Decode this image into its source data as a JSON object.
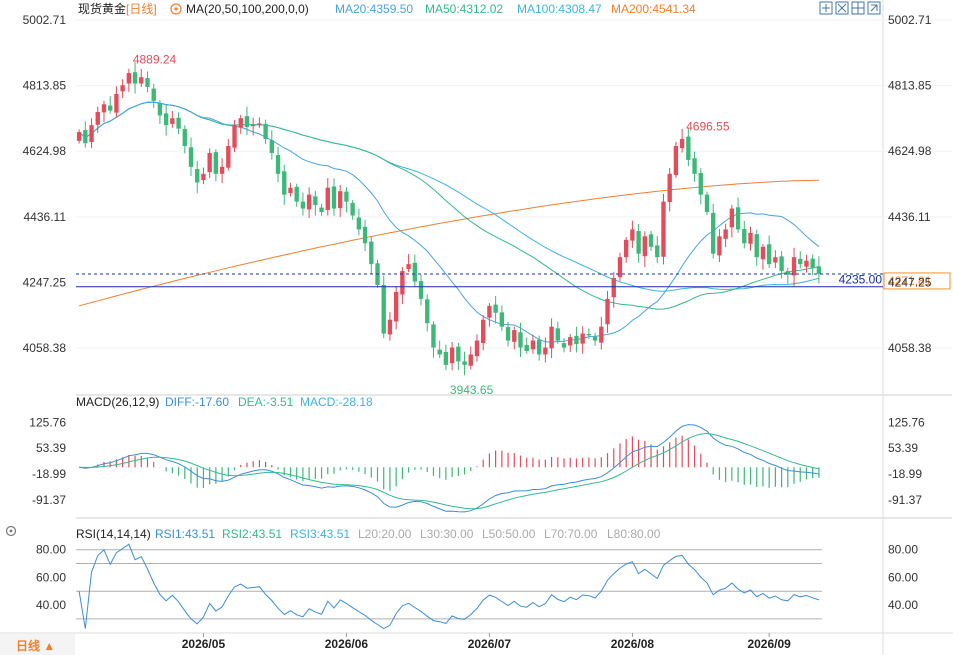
{
  "header": {
    "instrument": "现货黄金",
    "period_tag": "[日线]",
    "settings_icon": "gear-icon",
    "ma_label": "MA(20,50,100,200,0,0)",
    "ma20": "MA20:4359.50",
    "ma50": "MA50:4312.02",
    "ma100": "MA100:4308.47",
    "ma200": "MA200:4541.34",
    "toolbar_icons": [
      "crosshair-icon",
      "fullscreen-icon",
      "grid-icon",
      "expand-icon"
    ]
  },
  "macd_header": {
    "label": "MACD(26,12,9)",
    "diff": "DIFF:-17.60",
    "dea": "DEA:-3.51",
    "macd": "MACD:-28.18"
  },
  "rsi_header": {
    "label": "RSI(14,14,14)",
    "rsi1": "RSI1:43.51",
    "rsi2": "RSI2:43.51",
    "rsi3": "RSI3:43.51",
    "l20": "L20:20.00",
    "l30": "L30:30.00",
    "l50": "L50:50.00",
    "l70": "L70:70.00",
    "l80": "L80:80.00"
  },
  "footer": {
    "period_button": "日线 ▲",
    "x_labels": [
      "2026/05",
      "2026/06",
      "2026/07",
      "2026/08",
      "2026/09"
    ]
  },
  "annotations": {
    "high": "4889.24",
    "low": "3943.65",
    "high2": "4696.55",
    "hline_value": "4235.00",
    "last_price": "4271.81"
  },
  "colors": {
    "up": "#e34c5b",
    "down": "#3cb878",
    "ma20": "#4aa3df",
    "ma50": "#34b98f",
    "ma100": "#3fb3e0",
    "ma200": "#f08030",
    "hline": "#1b2fa8",
    "macd_diff": "#3b8fd6",
    "macd_dea": "#34b98f",
    "rsi": "#3b8fd6",
    "price_box": "#f29330"
  },
  "chart_data": [
    {
      "type": "candlestick",
      "title": "现货黄金 [日线]",
      "x_tick_labels": [
        "2026/05",
        "2026/06",
        "2026/07",
        "2026/08",
        "2026/09"
      ],
      "y_tick_labels": [
        "5002.71",
        "4813.85",
        "4624.98",
        "4436.11",
        "4247.25",
        "4058.38"
      ],
      "ylim": [
        3932,
        5002.71
      ],
      "horizontal_line": 4235.0,
      "last_price": 4271.81,
      "marked_high": 4889.24,
      "marked_low": 3943.65,
      "marked_high_2": 4696.55,
      "closes": [
        4680,
        4648,
        4700,
        4738,
        4760,
        4742,
        4790,
        4815,
        4850,
        4820,
        4838,
        4810,
        4770,
        4728,
        4700,
        4720,
        4690,
        4640,
        4580,
        4535,
        4560,
        4620,
        4560,
        4580,
        4640,
        4700,
        4720,
        4695,
        4700,
        4705,
        4660,
        4620,
        4560,
        4500,
        4520,
        4480,
        4460,
        4500,
        4470,
        4450,
        4520,
        4460,
        4510,
        4480,
        4440,
        4400,
        4360,
        4300,
        4240,
        4100,
        4140,
        4220,
        4280,
        4300,
        4250,
        4200,
        4130,
        4060,
        4040,
        4010,
        4060,
        4020,
        4010,
        4040,
        4080,
        4140,
        4180,
        4160,
        4120,
        4080,
        4110,
        4060,
        4050,
        4080,
        4040,
        4060,
        4120,
        4080,
        4060,
        4090,
        4070,
        4100,
        4095,
        4080,
        4120,
        4200,
        4260,
        4320,
        4370,
        4400,
        4330,
        4380,
        4350,
        4320,
        4480,
        4560,
        4640,
        4660,
        4600,
        4560,
        4500,
        4450,
        4330,
        4380,
        4400,
        4460,
        4400,
        4360,
        4390,
        4320,
        4350,
        4300,
        4320,
        4280,
        4270,
        4320,
        4300,
        4310,
        4290,
        4271.81
      ],
      "ma20_last": 4359.5,
      "ma50_last": 4312.02,
      "ma100_last": 4308.47,
      "ma200_last": 4541.34
    },
    {
      "type": "bar+line",
      "title": "MACD(26,12,9)",
      "y_tick_labels": [
        "125.76",
        "53.39",
        "-18.99",
        "-91.37"
      ],
      "ylim": [
        -125,
        160
      ],
      "diff_last": -17.6,
      "dea_last": -3.51,
      "macd_last": -28.18
    },
    {
      "type": "line",
      "title": "RSI(14,14,14)",
      "y_tick_labels": [
        "80.00",
        "60.00",
        "40.00"
      ],
      "ylim": [
        22,
        87
      ],
      "levels": [
        20,
        30,
        50,
        70,
        80
      ],
      "rsi_last": 43.51
    }
  ]
}
